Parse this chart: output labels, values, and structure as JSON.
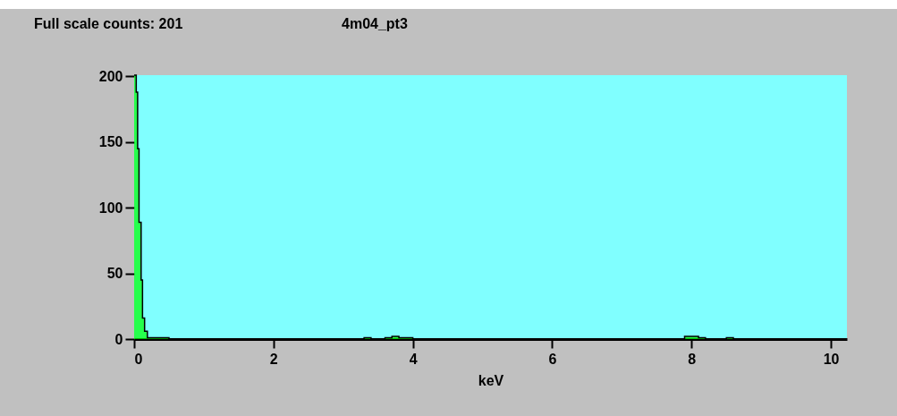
{
  "chart_data": {
    "type": "area",
    "title": "4m04_pt3",
    "subtitle": "Full scale counts: 201",
    "xlabel": "keV",
    "x": [
      0,
      0.03,
      0.05,
      0.07,
      0.1,
      0.12,
      0.15,
      0.19,
      0.5,
      1,
      2,
      3.2,
      3.3,
      3.4,
      3.6,
      3.7,
      3.8,
      4,
      5,
      6,
      7,
      7.8,
      7.9,
      8.1,
      8.2,
      8.5,
      8.6,
      9,
      10.23
    ],
    "values": [
      201,
      188,
      145,
      89,
      45,
      16,
      6,
      1,
      0,
      0,
      0,
      0,
      1,
      0,
      1,
      2,
      1,
      0,
      0,
      0,
      0,
      0,
      2,
      1,
      0,
      1,
      0,
      0,
      0
    ],
    "color": "#00ff00",
    "xlim": [
      0,
      10.23
    ],
    "ylim": [
      0,
      201
    ],
    "xticks": [
      0,
      2,
      4,
      6,
      8,
      10
    ],
    "yticks": [
      0,
      50,
      100,
      150,
      200
    ],
    "grid": false
  }
}
